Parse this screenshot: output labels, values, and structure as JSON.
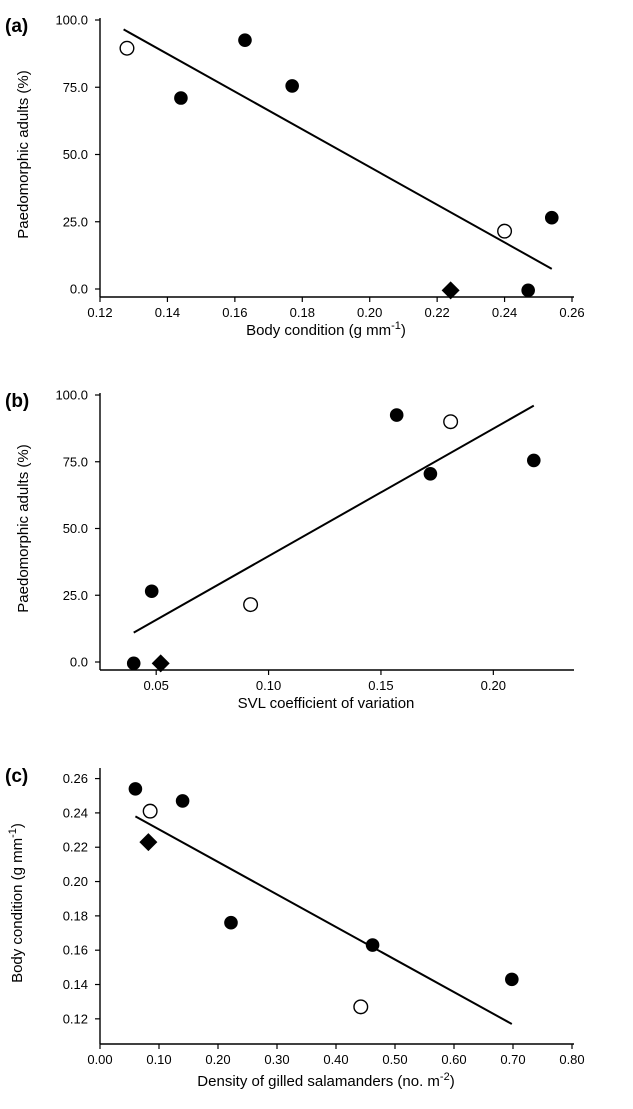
{
  "chart_data": [
    {
      "type": "scatter",
      "panel_label": "(a)",
      "xlabel": "Body condition (g mm",
      "xlabel_sup": "-1",
      "xlabel_suffix": ")",
      "ylabel": "Paedomorphic adults (%)",
      "xlim": [
        0.12,
        0.26
      ],
      "ylim": [
        0,
        100
      ],
      "x_ticks": [
        "0.12",
        "0.14",
        "0.16",
        "0.18",
        "0.20",
        "0.22",
        "0.24",
        "0.26"
      ],
      "y_ticks": [
        "0.0",
        "25.0",
        "50.0",
        "75.0",
        "100.0"
      ],
      "points": [
        {
          "x": 0.128,
          "y": 89.5,
          "marker": "open-circle"
        },
        {
          "x": 0.144,
          "y": 71.0,
          "marker": "filled-circle"
        },
        {
          "x": 0.163,
          "y": 92.5,
          "marker": "filled-circle"
        },
        {
          "x": 0.177,
          "y": 75.5,
          "marker": "filled-circle"
        },
        {
          "x": 0.224,
          "y": -0.5,
          "marker": "filled-diamond"
        },
        {
          "x": 0.24,
          "y": 21.5,
          "marker": "open-circle"
        },
        {
          "x": 0.247,
          "y": -0.5,
          "marker": "filled-circle"
        },
        {
          "x": 0.254,
          "y": 26.5,
          "marker": "filled-circle"
        }
      ],
      "fit_line": {
        "x": [
          0.127,
          0.254
        ],
        "y": [
          96.5,
          7.5
        ]
      }
    },
    {
      "type": "scatter",
      "panel_label": "(b)",
      "xlabel": "SVL coefficient of variation",
      "ylabel": "Paedomorphic adults (%)",
      "xlim": [
        0.025,
        0.235
      ],
      "ylim": [
        0,
        100
      ],
      "x_ticks": [
        "0.05",
        "0.10",
        "0.15",
        "0.20"
      ],
      "x_tick_values": [
        0.05,
        0.1,
        0.15,
        0.2
      ],
      "y_ticks": [
        "0.0",
        "25.0",
        "50.0",
        "75.0",
        "100.0"
      ],
      "points": [
        {
          "x": 0.04,
          "y": -0.5,
          "marker": "filled-circle"
        },
        {
          "x": 0.048,
          "y": 26.5,
          "marker": "filled-circle"
        },
        {
          "x": 0.052,
          "y": -0.5,
          "marker": "filled-diamond"
        },
        {
          "x": 0.092,
          "y": 21.5,
          "marker": "open-circle"
        },
        {
          "x": 0.157,
          "y": 92.5,
          "marker": "filled-circle"
        },
        {
          "x": 0.172,
          "y": 70.5,
          "marker": "filled-circle"
        },
        {
          "x": 0.181,
          "y": 90.0,
          "marker": "open-circle"
        },
        {
          "x": 0.218,
          "y": 75.5,
          "marker": "filled-circle"
        }
      ],
      "fit_line": {
        "x": [
          0.04,
          0.218
        ],
        "y": [
          11.0,
          96.0
        ]
      }
    },
    {
      "type": "scatter",
      "panel_label": "(c)",
      "xlabel": "Density of gilled salamanders (no. m",
      "xlabel_sup": "-2",
      "xlabel_suffix": ")",
      "ylabel": "Body condition (g mm",
      "ylabel_sup": "-1",
      "ylabel_suffix": ")",
      "xlim": [
        0.0,
        0.8
      ],
      "ylim": [
        0.11,
        0.265
      ],
      "x_ticks": [
        "0.00",
        "0.10",
        "0.20",
        "0.30",
        "0.40",
        "0.50",
        "0.60",
        "0.70",
        "0.80"
      ],
      "y_ticks": [
        "0.12",
        "0.14",
        "0.16",
        "0.18",
        "0.20",
        "0.22",
        "0.24",
        "0.26"
      ],
      "points": [
        {
          "x": 0.06,
          "y": 0.254,
          "marker": "filled-circle"
        },
        {
          "x": 0.085,
          "y": 0.241,
          "marker": "open-circle"
        },
        {
          "x": 0.082,
          "y": 0.223,
          "marker": "filled-diamond"
        },
        {
          "x": 0.14,
          "y": 0.247,
          "marker": "filled-circle"
        },
        {
          "x": 0.222,
          "y": 0.176,
          "marker": "filled-circle"
        },
        {
          "x": 0.442,
          "y": 0.127,
          "marker": "open-circle"
        },
        {
          "x": 0.462,
          "y": 0.163,
          "marker": "filled-circle"
        },
        {
          "x": 0.698,
          "y": 0.143,
          "marker": "filled-circle"
        }
      ],
      "fit_line": {
        "x": [
          0.06,
          0.698
        ],
        "y": [
          0.238,
          0.117
        ]
      }
    }
  ]
}
